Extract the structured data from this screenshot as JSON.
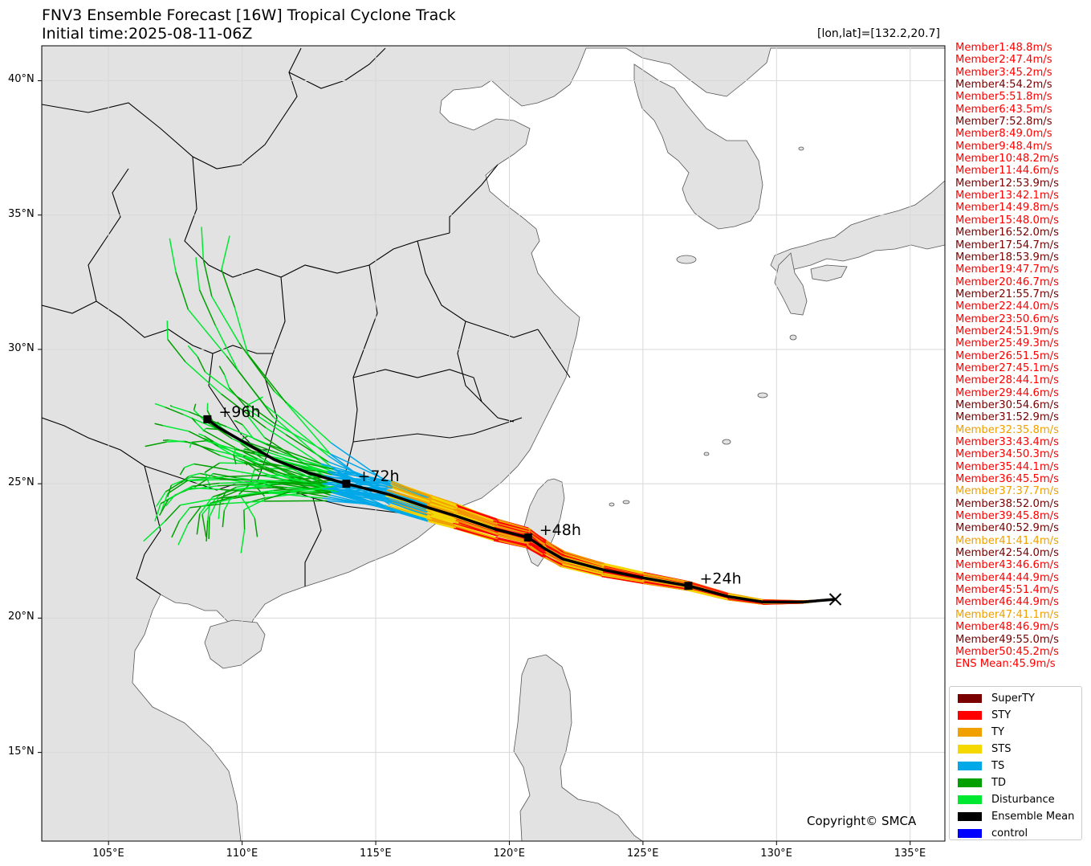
{
  "title_line1": "FNV3 Ensemble Forecast [16W] Tropical Cyclone Track",
  "title_line2": "Initial time:2025-08-11-06Z",
  "position_readout": "[lon,lat]=[132.2,20.7]",
  "copyright": "Copyright© SMCA",
  "axes": {
    "lon_ticks": [
      "105°E",
      "110°E",
      "115°E",
      "120°E",
      "125°E",
      "130°E",
      "135°E"
    ],
    "lat_ticks": [
      "15°N",
      "20°N",
      "25°N",
      "30°N",
      "35°N",
      "40°N"
    ],
    "lon_range": [
      102.5,
      136.3
    ],
    "lat_range": [
      11.7,
      41.3
    ]
  },
  "members": [
    {
      "label": "Member1:48.8m/s",
      "category": "STY"
    },
    {
      "label": "Member2:47.4m/s",
      "category": "STY"
    },
    {
      "label": "Member3:45.2m/s",
      "category": "STY"
    },
    {
      "label": "Member4:54.2m/s",
      "category": "SuperTY"
    },
    {
      "label": "Member5:51.8m/s",
      "category": "STY"
    },
    {
      "label": "Member6:43.5m/s",
      "category": "STY"
    },
    {
      "label": "Member7:52.8m/s",
      "category": "SuperTY"
    },
    {
      "label": "Member8:49.0m/s",
      "category": "STY"
    },
    {
      "label": "Member9:48.4m/s",
      "category": "STY"
    },
    {
      "label": "Member10:48.2m/s",
      "category": "STY"
    },
    {
      "label": "Member11:44.6m/s",
      "category": "STY"
    },
    {
      "label": "Member12:53.9m/s",
      "category": "SuperTY"
    },
    {
      "label": "Member13:42.1m/s",
      "category": "STY"
    },
    {
      "label": "Member14:49.8m/s",
      "category": "STY"
    },
    {
      "label": "Member15:48.0m/s",
      "category": "STY"
    },
    {
      "label": "Member16:52.0m/s",
      "category": "SuperTY"
    },
    {
      "label": "Member17:54.7m/s",
      "category": "SuperTY"
    },
    {
      "label": "Member18:53.9m/s",
      "category": "SuperTY"
    },
    {
      "label": "Member19:47.7m/s",
      "category": "STY"
    },
    {
      "label": "Member20:46.7m/s",
      "category": "STY"
    },
    {
      "label": "Member21:55.7m/s",
      "category": "SuperTY"
    },
    {
      "label": "Member22:44.0m/s",
      "category": "STY"
    },
    {
      "label": "Member23:50.6m/s",
      "category": "STY"
    },
    {
      "label": "Member24:51.9m/s",
      "category": "STY"
    },
    {
      "label": "Member25:49.3m/s",
      "category": "STY"
    },
    {
      "label": "Member26:51.5m/s",
      "category": "STY"
    },
    {
      "label": "Member27:45.1m/s",
      "category": "STY"
    },
    {
      "label": "Member28:44.1m/s",
      "category": "STY"
    },
    {
      "label": "Member29:44.6m/s",
      "category": "STY"
    },
    {
      "label": "Member30:54.6m/s",
      "category": "SuperTY"
    },
    {
      "label": "Member31:52.9m/s",
      "category": "SuperTY"
    },
    {
      "label": "Member32:35.8m/s",
      "category": "TY"
    },
    {
      "label": "Member33:43.4m/s",
      "category": "STY"
    },
    {
      "label": "Member34:50.3m/s",
      "category": "STY"
    },
    {
      "label": "Member35:44.1m/s",
      "category": "STY"
    },
    {
      "label": "Member36:45.5m/s",
      "category": "STY"
    },
    {
      "label": "Member37:37.7m/s",
      "category": "TY"
    },
    {
      "label": "Member38:52.0m/s",
      "category": "SuperTY"
    },
    {
      "label": "Member39:45.8m/s",
      "category": "STY"
    },
    {
      "label": "Member40:52.9m/s",
      "category": "SuperTY"
    },
    {
      "label": "Member41:41.4m/s",
      "category": "TY"
    },
    {
      "label": "Member42:54.0m/s",
      "category": "SuperTY"
    },
    {
      "label": "Member43:46.6m/s",
      "category": "STY"
    },
    {
      "label": "Member44:44.9m/s",
      "category": "STY"
    },
    {
      "label": "Member45:51.4m/s",
      "category": "STY"
    },
    {
      "label": "Member46:44.9m/s",
      "category": "STY"
    },
    {
      "label": "Member47:41.1m/s",
      "category": "TY"
    },
    {
      "label": "Member48:46.9m/s",
      "category": "STY"
    },
    {
      "label": "Member49:55.0m/s",
      "category": "SuperTY"
    },
    {
      "label": "Member50:45.2m/s",
      "category": "STY"
    },
    {
      "label": "ENS Mean:45.9m/s",
      "category": "STY"
    }
  ],
  "legend": [
    {
      "label": "SuperTY",
      "color": "#7a0000"
    },
    {
      "label": "STY",
      "color": "#ff0000"
    },
    {
      "label": "TY",
      "color": "#f0a000"
    },
    {
      "label": "STS",
      "color": "#f5d800"
    },
    {
      "label": "TS",
      "color": "#00a8e8"
    },
    {
      "label": "TD",
      "color": "#00a000"
    },
    {
      "label": "Disturbance",
      "color": "#00e830"
    },
    {
      "label": "Ensemble Mean",
      "color": "#000000"
    },
    {
      "label": "control",
      "color": "#0000ff"
    }
  ],
  "ensemble_mean_track": [
    [
      132.2,
      20.7
    ],
    [
      131.0,
      20.6
    ],
    [
      129.5,
      20.6
    ],
    [
      128.2,
      20.8
    ],
    [
      126.7,
      21.2
    ],
    [
      125.0,
      21.5
    ],
    [
      123.5,
      21.8
    ],
    [
      122.0,
      22.2
    ],
    [
      121.3,
      22.6
    ],
    [
      120.7,
      23.0
    ],
    [
      119.5,
      23.3
    ],
    [
      118.0,
      23.8
    ],
    [
      117.0,
      24.1
    ],
    [
      115.5,
      24.6
    ],
    [
      113.9,
      25.0
    ],
    [
      112.5,
      25.4
    ],
    [
      111.2,
      25.9
    ],
    [
      109.8,
      26.7
    ],
    [
      109.1,
      27.1
    ],
    [
      108.7,
      27.4
    ]
  ],
  "time_labels": [
    {
      "label": "+24h",
      "lon": 126.7,
      "lat": 21.2
    },
    {
      "label": "+48h",
      "lon": 120.7,
      "lat": 23.0
    },
    {
      "label": "+72h",
      "lon": 113.9,
      "lat": 25.0
    },
    {
      "label": "+96h",
      "lon": 108.7,
      "lat": 27.4
    }
  ],
  "initial_position": {
    "lon": 132.2,
    "lat": 20.7
  }
}
